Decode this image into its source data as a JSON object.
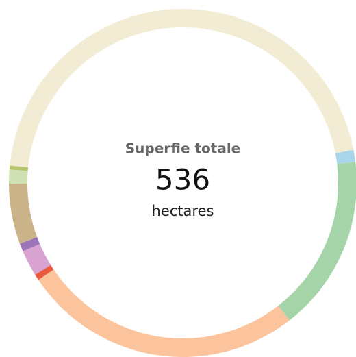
{
  "chart_data": {
    "type": "donut",
    "title": "Superfie totale",
    "total": "536",
    "unit": "hectares",
    "values": [
      6,
      88,
      140,
      3,
      13,
      4,
      30,
      7,
      2,
      243
    ],
    "colors": [
      "#a9d6ea",
      "#a5d4a9",
      "#fcc49c",
      "#ea5a3f",
      "#d8a3d0",
      "#9c72b9",
      "#cab389",
      "#cfe1b2",
      "#b7c66c",
      "#f1ecd3"
    ]
  }
}
